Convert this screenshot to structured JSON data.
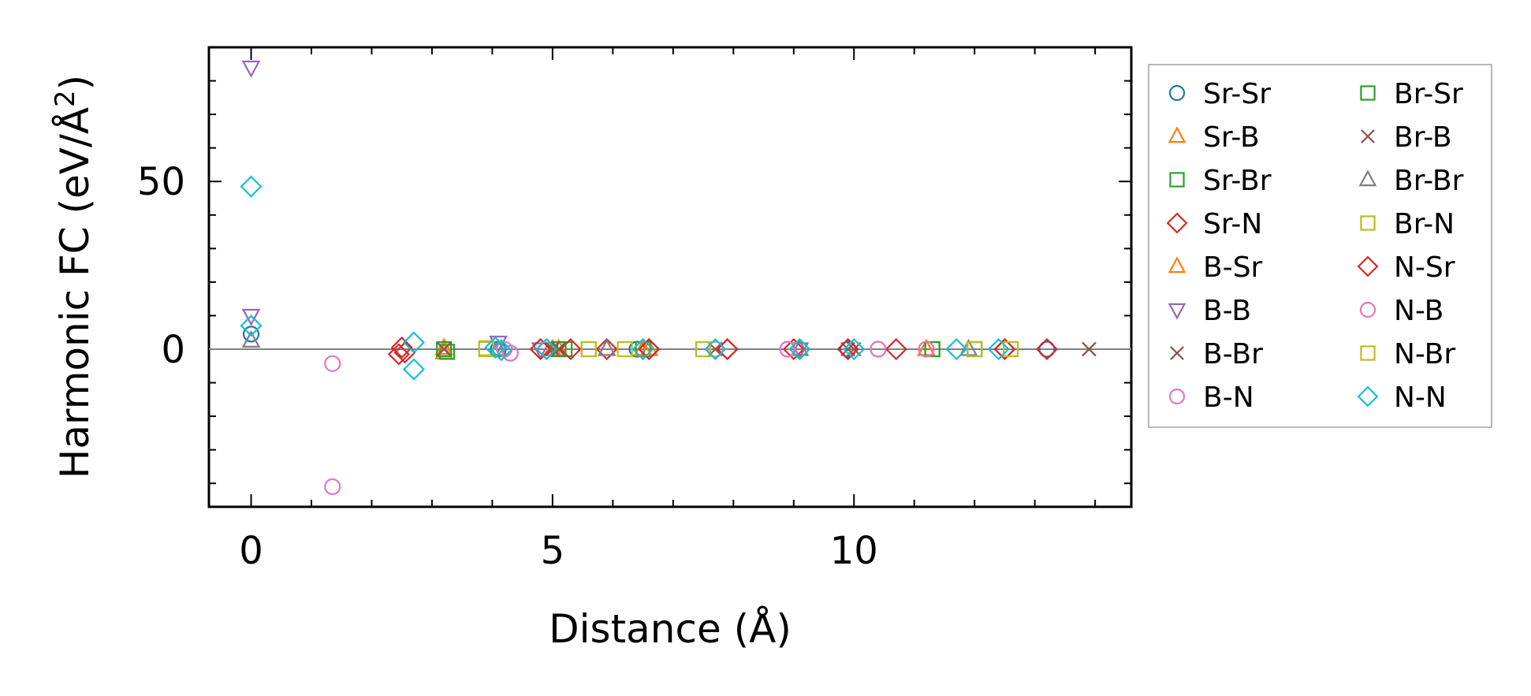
{
  "chart_data": {
    "type": "scatter",
    "xlabel": "Distance (Å)",
    "ylabel_main": "Harmonic FC (eV/Å",
    "ylabel_sup": "2",
    "ylabel_end": ")",
    "xlim": [
      -0.7,
      14.6
    ],
    "ylim": [
      -47,
      90
    ],
    "xticks": [
      0,
      5,
      10
    ],
    "xtick_labels": [
      "0",
      "5",
      "10"
    ],
    "yticks": [
      0,
      50
    ],
    "ytick_labels": [
      "0",
      "50"
    ],
    "x_minor_step": 1,
    "y_minor_step": 10,
    "zero_line": true,
    "grid": false,
    "legend_position": "outside-right",
    "legend_columns": 2,
    "series": [
      {
        "name": "Sr-Sr",
        "marker": "circle",
        "color": "#1f77b4",
        "points": [
          [
            0,
            4.5
          ],
          [
            4.1,
            0
          ],
          [
            6.4,
            0
          ],
          [
            9.9,
            0
          ],
          [
            13.2,
            0
          ]
        ]
      },
      {
        "name": "Sr-B",
        "marker": "triangle-up",
        "color": "#ff7f0e",
        "points": [
          [
            3.2,
            -1.0
          ],
          [
            5.1,
            0
          ],
          [
            6.6,
            0
          ],
          [
            11.2,
            0
          ]
        ]
      },
      {
        "name": "Sr-Br",
        "marker": "square",
        "color": "#2ca02c",
        "points": [
          [
            3.25,
            -0.8
          ],
          [
            5.2,
            0
          ],
          [
            6.5,
            0
          ],
          [
            11.3,
            0
          ],
          [
            12.0,
            0
          ]
        ]
      },
      {
        "name": "Sr-N",
        "marker": "diamond",
        "color": "#d62728",
        "points": [
          [
            2.45,
            -1.5
          ],
          [
            2.5,
            0.5
          ],
          [
            4.9,
            0
          ],
          [
            5.3,
            0
          ],
          [
            5.9,
            0
          ],
          [
            6.6,
            0
          ],
          [
            7.9,
            0
          ],
          [
            9.0,
            0
          ],
          [
            9.9,
            0
          ],
          [
            10.7,
            0
          ],
          [
            12.5,
            0
          ],
          [
            13.2,
            0
          ]
        ]
      },
      {
        "name": "B-Sr",
        "marker": "triangle-up",
        "color": "#ff7f0e",
        "points": [
          [
            3.2,
            0.3
          ],
          [
            5.0,
            0
          ],
          [
            6.5,
            0
          ],
          [
            11.2,
            0
          ]
        ]
      },
      {
        "name": "B-B",
        "marker": "triangle-down",
        "color": "#9467bd",
        "points": [
          [
            0,
            84
          ],
          [
            0,
            10
          ],
          [
            4.1,
            2.0
          ],
          [
            4.8,
            0
          ],
          [
            9.1,
            0
          ]
        ]
      },
      {
        "name": "B-Br",
        "marker": "x",
        "color": "#8c564b",
        "points": [
          [
            3.2,
            0
          ],
          [
            5.0,
            0
          ],
          [
            7.7,
            0
          ],
          [
            9.9,
            0
          ],
          [
            13.9,
            0
          ]
        ]
      },
      {
        "name": "B-N",
        "marker": "circle",
        "color": "#e377c2",
        "points": [
          [
            1.35,
            -4.3
          ],
          [
            1.35,
            -41
          ],
          [
            4.3,
            -1.2
          ],
          [
            4.2,
            0
          ],
          [
            7.7,
            0
          ],
          [
            8.9,
            0
          ],
          [
            10.4,
            0
          ],
          [
            11.2,
            0
          ]
        ]
      },
      {
        "name": "Br-Sr",
        "marker": "square",
        "color": "#2ca02c",
        "points": [
          [
            3.2,
            0
          ],
          [
            5.1,
            0
          ],
          [
            11.3,
            0
          ],
          [
            12.0,
            0
          ]
        ]
      },
      {
        "name": "Br-B",
        "marker": "x",
        "color": "#8c564b",
        "points": [
          [
            3.2,
            0
          ],
          [
            5.1,
            0
          ],
          [
            10.0,
            0
          ],
          [
            13.9,
            0
          ]
        ]
      },
      {
        "name": "Br-Br",
        "marker": "triangle-up",
        "color": "#7f7f7f",
        "points": [
          [
            0,
            2.5
          ],
          [
            4.1,
            0
          ],
          [
            5.9,
            0
          ],
          [
            9.1,
            0
          ],
          [
            11.9,
            0
          ]
        ]
      },
      {
        "name": "Br-N",
        "marker": "square",
        "color": "#bcbd22",
        "points": [
          [
            3.9,
            0
          ],
          [
            5.6,
            0
          ],
          [
            6.2,
            0
          ],
          [
            7.5,
            0
          ],
          [
            12.6,
            0
          ]
        ]
      },
      {
        "name": "N-Sr",
        "marker": "diamond",
        "color": "#d62728",
        "points": [
          [
            2.55,
            -1.0
          ],
          [
            4.8,
            0
          ],
          [
            6.6,
            0
          ],
          [
            7.9,
            0
          ],
          [
            9.9,
            0
          ],
          [
            12.5,
            0
          ]
        ]
      },
      {
        "name": "N-B",
        "marker": "circle",
        "color": "#e377c2",
        "points": [
          [
            4.3,
            -1.2
          ],
          [
            8.9,
            0
          ],
          [
            10.4,
            0
          ],
          [
            11.2,
            0
          ]
        ]
      },
      {
        "name": "N-Br",
        "marker": "square",
        "color": "#bcbd22",
        "points": [
          [
            3.9,
            0.3
          ],
          [
            5.6,
            0
          ],
          [
            7.5,
            0
          ],
          [
            12.0,
            0
          ],
          [
            12.6,
            0
          ]
        ]
      },
      {
        "name": "N-N",
        "marker": "diamond",
        "color": "#17becf",
        "points": [
          [
            0,
            48.5
          ],
          [
            0,
            7.0
          ],
          [
            2.7,
            2.0
          ],
          [
            2.7,
            -6.0
          ],
          [
            4.05,
            0.5
          ],
          [
            4.15,
            -0.3
          ],
          [
            4.9,
            0
          ],
          [
            6.5,
            0
          ],
          [
            7.7,
            0
          ],
          [
            9.1,
            0
          ],
          [
            10.0,
            0
          ],
          [
            11.7,
            0
          ],
          [
            12.4,
            0
          ]
        ]
      }
    ]
  }
}
